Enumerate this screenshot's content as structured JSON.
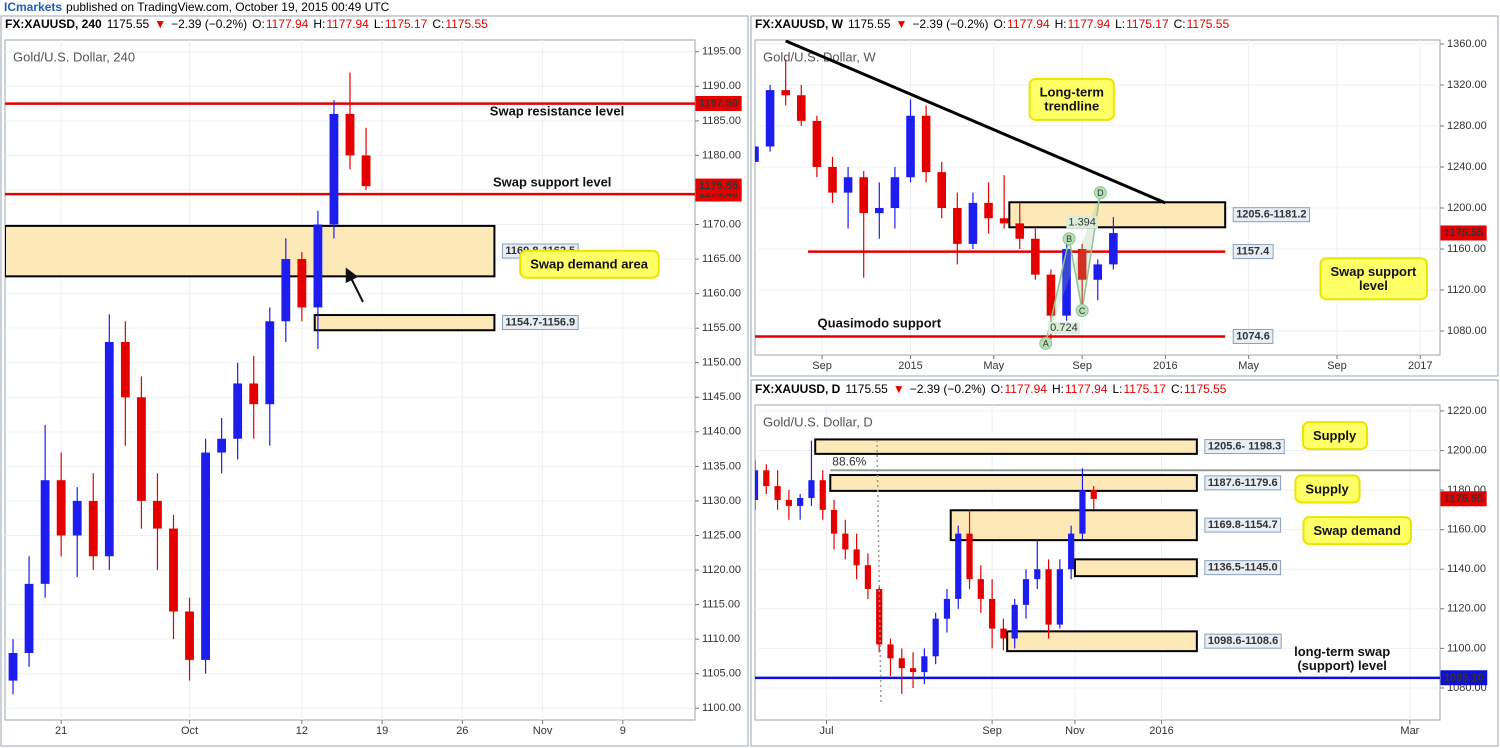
{
  "byline": {
    "author": "ICmarkets",
    "text": "published on TradingView.com, October 19, 2015 00:49 UTC"
  },
  "chart_data": [
    {
      "type": "candlestick",
      "title": "Gold/U.S. Dollar, 240",
      "header": [
        "FX:XAUUSD, 240",
        "1175.55",
        "▼",
        "−2.39 (−0.2%)",
        "O:",
        "1177.94",
        "H:",
        "1177.94",
        "L:",
        "1175.17",
        "C:",
        "1175.55"
      ],
      "up_color": "#1d1df0",
      "down_color": "#e50000",
      "xlim": [
        -3.5,
        39.5
      ],
      "ylim": [
        1098.3,
        1196.7
      ],
      "xticks": [
        {
          "value": 0,
          "label": "21"
        },
        {
          "value": 8,
          "label": "Oct"
        },
        {
          "value": 15,
          "label": "12"
        },
        {
          "value": 20,
          "label": "19"
        },
        {
          "value": 25,
          "label": "26"
        },
        {
          "value": 30,
          "label": "Nov"
        },
        {
          "value": 35,
          "label": "9"
        }
      ],
      "yticks": [
        {
          "value": 1100,
          "label": "1100.00"
        },
        {
          "value": 1105,
          "label": "1105.00"
        },
        {
          "value": 1110,
          "label": "1110.00"
        },
        {
          "value": 1115,
          "label": "1115.00"
        },
        {
          "value": 1120,
          "label": "1120.00"
        },
        {
          "value": 1125,
          "label": "1125.00"
        },
        {
          "value": 1130,
          "label": "1130.00"
        },
        {
          "value": 1135,
          "label": "1135.00"
        },
        {
          "value": 1140,
          "label": "1140.00"
        },
        {
          "value": 1145,
          "label": "1145.00"
        },
        {
          "value": 1150,
          "label": "1150.00"
        },
        {
          "value": 1155,
          "label": "1155.00"
        },
        {
          "value": 1160,
          "label": "1160.00"
        },
        {
          "value": 1165,
          "label": "1165.00"
        },
        {
          "value": 1170,
          "label": "1170.00"
        },
        {
          "value": 1175,
          "label": "1175.00"
        },
        {
          "value": 1180,
          "label": "1180.00"
        },
        {
          "value": 1185,
          "label": "1185.00"
        },
        {
          "value": 1190,
          "label": "1190.00"
        },
        {
          "value": 1195,
          "label": "1195.00"
        }
      ],
      "x": [
        -3,
        -2,
        -1,
        0,
        1,
        2,
        3,
        4,
        5,
        6,
        7,
        8,
        9,
        10,
        11,
        12,
        13,
        14,
        15,
        16,
        17,
        18,
        19
      ],
      "candles": [
        [
          1104,
          1110,
          1102,
          1108
        ],
        [
          1108,
          1122,
          1106,
          1118
        ],
        [
          1118,
          1141,
          1116,
          1133
        ],
        [
          1133,
          1137,
          1122,
          1125
        ],
        [
          1125,
          1132,
          1119,
          1130
        ],
        [
          1130,
          1134,
          1120,
          1122
        ],
        [
          1122,
          1157,
          1120,
          1153
        ],
        [
          1153,
          1156,
          1138,
          1145
        ],
        [
          1145,
          1148,
          1126,
          1130
        ],
        [
          1130,
          1134,
          1120,
          1126
        ],
        [
          1126,
          1128,
          1110,
          1114
        ],
        [
          1114,
          1116,
          1104,
          1107
        ],
        [
          1107,
          1139,
          1105,
          1137
        ],
        [
          1137,
          1142,
          1134,
          1139
        ],
        [
          1139,
          1150,
          1136,
          1147
        ],
        [
          1147,
          1151,
          1139,
          1144
        ],
        [
          1144,
          1158,
          1138,
          1156
        ],
        [
          1156,
          1168,
          1153,
          1165
        ],
        [
          1165,
          1166,
          1156,
          1158
        ],
        [
          1158,
          1172,
          1152,
          1170
        ],
        [
          1170,
          1188,
          1168,
          1186
        ],
        [
          1186,
          1192,
          1178,
          1180
        ],
        [
          1180,
          1184,
          1175,
          1175.55
        ]
      ],
      "levels": [
        {
          "value": 1187.5,
          "label": "1187.50",
          "color": "#e50000",
          "tag": "axis"
        },
        {
          "value": 1174.4,
          "label": "1174.40",
          "color": "#e50000",
          "tag": "axis"
        }
      ],
      "last_price": {
        "value": 1175.55,
        "label": "1175.55",
        "color": "#e50000"
      },
      "zones": [
        {
          "label": "1169.8-1162.5",
          "low": 1162.5,
          "high": 1169.8,
          "x": [
            -3.5,
            27
          ]
        },
        {
          "label": "1154.7-1156.9",
          "low": 1154.7,
          "high": 1156.9,
          "x": [
            15.8,
            27
          ]
        }
      ],
      "annotations": [
        {
          "text": "Swap resistance level",
          "style": "plain",
          "x": 30.9,
          "y": 1186.3
        },
        {
          "text": "Swap support level",
          "style": "plain",
          "x": 30.6,
          "y": 1176
        },
        {
          "text": "Swap demand area",
          "style": "callout",
          "x": 32.9,
          "y": 1164.1
        }
      ]
    },
    {
      "type": "candlestick",
      "title": "Gold/U.S. Dollar, W",
      "header": [
        "FX:XAUUSD, W",
        "1175.55",
        "▼",
        "−2.39 (−0.2%)",
        "O:",
        "1177.94",
        "H:",
        "1177.94",
        "L:",
        "1175.17",
        "C:",
        "1175.55"
      ],
      "up_color": "#1d1df0",
      "down_color": "#e50000",
      "xlim": [
        -12.9,
        118.8
      ],
      "ylim": [
        1056.6,
        1363.9
      ],
      "xticks": [
        {
          "value": 0,
          "label": "Sep"
        },
        {
          "value": 17,
          "label": "2015"
        },
        {
          "value": 33,
          "label": "May"
        },
        {
          "value": 50,
          "label": "Sep"
        },
        {
          "value": 66,
          "label": "2016"
        },
        {
          "value": 82,
          "label": "May"
        },
        {
          "value": 99,
          "label": "Sep"
        },
        {
          "value": 115,
          "label": "2017"
        }
      ],
      "yticks": [
        {
          "value": 1080,
          "label": "1080.00"
        },
        {
          "value": 1120,
          "label": "1120.00"
        },
        {
          "value": 1160,
          "label": "1160.00"
        },
        {
          "value": 1200,
          "label": "1200.00"
        },
        {
          "value": 1240,
          "label": "1240.00"
        },
        {
          "value": 1280,
          "label": "1280.00"
        },
        {
          "value": 1320,
          "label": "1320.00"
        },
        {
          "value": 1360,
          "label": "1360.00"
        }
      ],
      "x": [
        -13,
        -10,
        -7,
        -4,
        -1,
        2,
        5,
        8,
        11,
        14,
        17,
        20,
        23,
        26,
        29,
        32,
        35,
        38,
        41,
        44,
        47,
        50,
        53,
        56
      ],
      "candles": [
        [
          1245,
          1265,
          1240,
          1260
        ],
        [
          1260,
          1320,
          1255,
          1315
        ],
        [
          1315,
          1345,
          1300,
          1310
        ],
        [
          1310,
          1320,
          1280,
          1285
        ],
        [
          1285,
          1290,
          1230,
          1240
        ],
        [
          1240,
          1250,
          1205,
          1215
        ],
        [
          1215,
          1240,
          1180,
          1230
        ],
        [
          1230,
          1236,
          1132,
          1195
        ],
        [
          1195,
          1225,
          1170,
          1200
        ],
        [
          1200,
          1240,
          1180,
          1230
        ],
        [
          1230,
          1306,
          1225,
          1290
        ],
        [
          1290,
          1300,
          1225,
          1235
        ],
        [
          1235,
          1245,
          1190,
          1200
        ],
        [
          1200,
          1215,
          1145,
          1165
        ],
        [
          1165,
          1215,
          1160,
          1205
        ],
        [
          1205,
          1225,
          1175,
          1190
        ],
        [
          1190,
          1232,
          1180,
          1185
        ],
        [
          1185,
          1205,
          1160,
          1170
        ],
        [
          1170,
          1180,
          1130,
          1135
        ],
        [
          1135,
          1140,
          1072,
          1095
        ],
        [
          1095,
          1170,
          1090,
          1160
        ],
        [
          1160,
          1165,
          1100,
          1130
        ],
        [
          1130,
          1150,
          1110,
          1145
        ],
        [
          1145,
          1191,
          1140,
          1175.55
        ]
      ],
      "levels": [
        {
          "value": 1157.4,
          "label": "1157.4",
          "color": "#e50000",
          "tag": "box",
          "x": [
            -2.7,
            77.5
          ]
        },
        {
          "value": 1074.6,
          "label": "1074.6",
          "color": "#e50000",
          "tag": "box",
          "x": [
            -12.9,
            77.5
          ]
        }
      ],
      "last_price": {
        "value": 1175.55,
        "label": "1175.55",
        "color": "#e50000"
      },
      "zones": [
        {
          "label": "1205.6-1181.2",
          "low": 1181.2,
          "high": 1205.6,
          "x": [
            36,
            77.5
          ]
        }
      ],
      "lines": [
        {
          "x": [
            -7,
            66
          ],
          "y": [
            1363,
            1205
          ],
          "color": "#000000"
        }
      ],
      "pattern": {
        "color": "#8fc48f",
        "points": [
          {
            "label": "A",
            "x": 43,
            "y": 1068
          },
          {
            "label": "B",
            "x": 47.5,
            "y": 1170
          },
          {
            "label": "C",
            "x": 50,
            "y": 1100
          },
          {
            "label": "D",
            "x": 53.5,
            "y": 1215
          }
        ],
        "ratios": [
          {
            "label": "1.394",
            "x": 50,
            "y": 1186
          },
          {
            "label": "0.724",
            "x": 46.5,
            "y": 1083
          }
        ]
      },
      "annotations": [
        {
          "text": [
            "Long-term",
            "trendline"
          ],
          "style": "callout",
          "x": 48,
          "y": 1305
        },
        {
          "text": [
            "Swap support",
            "level"
          ],
          "style": "callout",
          "x": 106,
          "y": 1130
        },
        {
          "text": "Quasimodo support",
          "style": "plain",
          "x": 11,
          "y": 1087
        }
      ]
    },
    {
      "type": "candlestick",
      "title": "Gold/U.S. Dollar, D",
      "header": [
        "FX:XAUUSD, D",
        "1175.55",
        "▼",
        "−2.39 (−0.2%)",
        "O:",
        "1177.94",
        "H:",
        "1177.94",
        "L:",
        "1175.17",
        "C:",
        "1175.55"
      ],
      "up_color": "#1d1df0",
      "down_color": "#e50000",
      "xlim": [
        0,
        182
      ],
      "ylim": [
        1063.8,
        1223
      ],
      "xticks": [
        {
          "value": 19,
          "label": "Jul"
        },
        {
          "value": 63,
          "label": "Sep"
        },
        {
          "value": 85,
          "label": "Nov"
        },
        {
          "value": 108,
          "label": "2016"
        },
        {
          "value": 174,
          "label": "Mar"
        }
      ],
      "yticks": [
        {
          "value": 1080,
          "label": "1080.00"
        },
        {
          "value": 1100,
          "label": "1100.00"
        },
        {
          "value": 1120,
          "label": "1120.00"
        },
        {
          "value": 1140,
          "label": "1140.00"
        },
        {
          "value": 1160,
          "label": "1160.00"
        },
        {
          "value": 1180,
          "label": "1180.00"
        },
        {
          "value": 1200,
          "label": "1200.00"
        },
        {
          "value": 1220,
          "label": "1220.00"
        }
      ],
      "x": [
        0,
        3,
        6,
        9,
        12,
        15,
        18,
        21,
        24,
        27,
        30,
        33,
        36,
        39,
        42,
        45,
        48,
        51,
        54,
        57,
        60,
        63,
        66,
        69,
        72,
        75,
        78,
        81,
        84,
        87,
        90
      ],
      "candles": [
        [
          1175,
          1195,
          1170,
          1190
        ],
        [
          1190,
          1193,
          1178,
          1182
        ],
        [
          1182,
          1190,
          1170,
          1175
        ],
        [
          1175,
          1180,
          1165,
          1172
        ],
        [
          1172,
          1178,
          1165,
          1176
        ],
        [
          1176,
          1205,
          1172,
          1185
        ],
        [
          1185,
          1190,
          1165,
          1170
        ],
        [
          1170,
          1175,
          1150,
          1158
        ],
        [
          1158,
          1165,
          1145,
          1150
        ],
        [
          1150,
          1158,
          1135,
          1142
        ],
        [
          1142,
          1148,
          1125,
          1130
        ],
        [
          1130,
          1132,
          1098,
          1102
        ],
        [
          1102,
          1105,
          1086,
          1095
        ],
        [
          1095,
          1100,
          1077,
          1090
        ],
        [
          1090,
          1098,
          1080,
          1088
        ],
        [
          1088,
          1100,
          1082,
          1096
        ],
        [
          1096,
          1118,
          1092,
          1115
        ],
        [
          1115,
          1130,
          1108,
          1125
        ],
        [
          1125,
          1162,
          1120,
          1158
        ],
        [
          1158,
          1170,
          1130,
          1135
        ],
        [
          1135,
          1142,
          1118,
          1125
        ],
        [
          1125,
          1135,
          1100,
          1110
        ],
        [
          1110,
          1115,
          1099,
          1105
        ],
        [
          1105,
          1125,
          1100,
          1122
        ],
        [
          1122,
          1140,
          1115,
          1135
        ],
        [
          1135,
          1155,
          1130,
          1140
        ],
        [
          1140,
          1145,
          1105,
          1112
        ],
        [
          1112,
          1145,
          1110,
          1140
        ],
        [
          1140,
          1162,
          1135,
          1158
        ],
        [
          1158,
          1191,
          1155,
          1180
        ],
        [
          1180,
          1182,
          1170,
          1175.55
        ]
      ],
      "levels": [
        {
          "value": 1190,
          "name": "88.6%",
          "color": "#9a9a9a",
          "tag": "none",
          "x": [
            20,
            182
          ]
        },
        {
          "value": 1085.1,
          "label": "1085.10",
          "color": "#1010d0",
          "tag": "axis"
        }
      ],
      "last_price": {
        "value": 1175.55,
        "label": "1175.55",
        "color": "#e50000"
      },
      "zones": [
        {
          "label": "1205.6- 1198.3",
          "low": 1198.3,
          "high": 1205.6,
          "x": [
            16,
            117.4
          ]
        },
        {
          "label": "1187.6-1179.6",
          "low": 1179.6,
          "high": 1187.6,
          "x": [
            20,
            117.4
          ]
        },
        {
          "label": "1169.8-1154.7",
          "low": 1154.7,
          "high": 1169.8,
          "x": [
            52,
            117.4
          ]
        },
        {
          "label": "1136.5-1145.0",
          "low": 1136.5,
          "high": 1145.0,
          "x": [
            85,
            117.4
          ]
        },
        {
          "label": "1098.6-1108.6",
          "low": 1098.6,
          "high": 1108.6,
          "x": [
            67,
            117.4
          ]
        }
      ],
      "annotations": [
        {
          "text": "Supply",
          "style": "callout",
          "x": 154,
          "y": 1207
        },
        {
          "text": "Supply",
          "style": "callout",
          "x": 152,
          "y": 1180
        },
        {
          "text": "Swap demand",
          "style": "callout",
          "x": 160,
          "y": 1159
        },
        {
          "text": [
            "long-term swap",
            "(support) level"
          ],
          "style": "plain",
          "x": 156,
          "y": 1094
        }
      ]
    }
  ]
}
